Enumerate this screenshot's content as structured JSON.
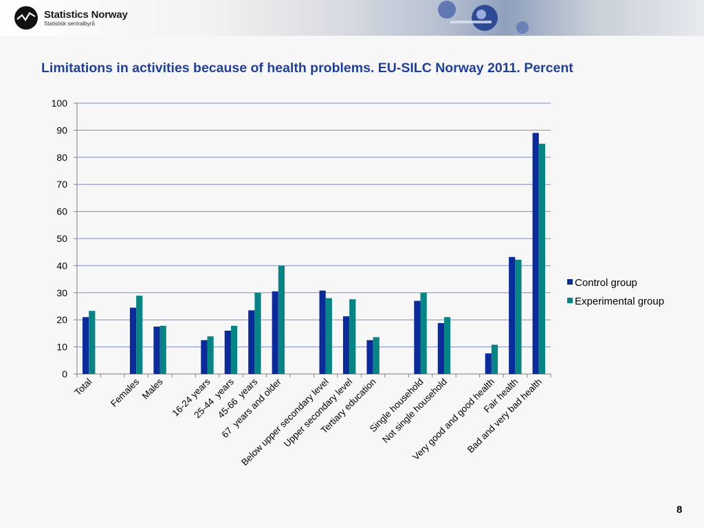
{
  "header": {
    "logo_name": "Statistics Norway",
    "logo_subtitle": "Statistisk sentralbyrå"
  },
  "slide": {
    "title": "Limitations in activities because of health problems. EU-SILC Norway 2011. Percent",
    "page_number": "8"
  },
  "colors": {
    "control": "#0b2b9b",
    "experimental": "#078585",
    "title": "#1f3f9f",
    "grid": "#7b8cc4"
  },
  "chart_data": {
    "type": "bar",
    "title": "Limitations in activities because of health problems. EU-SILC Norway 2011. Percent",
    "xlabel": "",
    "ylabel": "",
    "ylim": [
      0,
      100
    ],
    "yticks": [
      0,
      10,
      20,
      30,
      40,
      50,
      60,
      70,
      80,
      90,
      100
    ],
    "grid": true,
    "legend_position": "right",
    "categories": [
      "Total",
      "",
      "Females",
      "Males",
      "",
      "16-24 years",
      "25-44  years",
      "45-66  years",
      "67  years and older",
      "",
      "Below upper secondary level",
      "Upper secondary level",
      "Tertiary education",
      "",
      "Single household",
      "Not single household",
      "",
      "Very good and good health",
      "Fair health",
      "Bad and very bad health"
    ],
    "series": [
      {
        "name": "Control group",
        "values": [
          21,
          null,
          24.5,
          17.5,
          null,
          12.5,
          16,
          23.5,
          30.5,
          null,
          30.8,
          21.3,
          12.5,
          null,
          27,
          18.8,
          null,
          7.6,
          43.2,
          89
        ]
      },
      {
        "name": "Experimental group",
        "values": [
          23.3,
          null,
          28.9,
          17.8,
          null,
          13.9,
          17.8,
          30,
          40,
          null,
          28,
          27.6,
          13.6,
          null,
          30,
          21,
          null,
          10.8,
          42.2,
          85
        ]
      }
    ]
  }
}
